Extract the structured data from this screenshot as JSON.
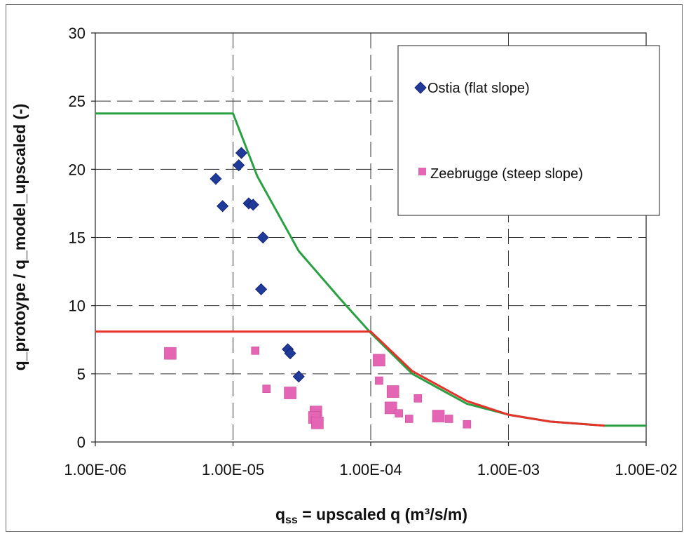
{
  "chart_data": {
    "type": "scatter",
    "xlabel_main": "q",
    "xlabel_sub": "ss",
    "xlabel_rest": " = upscaled q (m³/s/m)",
    "ylabel": "q_protoype / q_model_upscaled (-)",
    "x_scale": "log",
    "xlim": [
      1e-06,
      0.01
    ],
    "ylim": [
      0,
      30
    ],
    "x_tick_values": [
      1e-06,
      1e-05,
      0.0001,
      0.001,
      0.01
    ],
    "x_tick_labels": [
      "1.00E-06",
      "1.00E-05",
      "1.00E-04",
      "1.00E-03",
      "1.00E-02"
    ],
    "y_tick_values": [
      0,
      5,
      10,
      15,
      20,
      25,
      30
    ],
    "y_tick_labels": [
      "0",
      "5",
      "10",
      "15",
      "20",
      "25",
      "30"
    ],
    "grid": "dashed",
    "legend_position": "top-right",
    "series": [
      {
        "name": "Ostia (flat slope)",
        "marker": "diamond",
        "color": "#1f3a99",
        "points": [
          {
            "x": 7.5e-06,
            "y": 19.3
          },
          {
            "x": 8.4e-06,
            "y": 17.3
          },
          {
            "x": 1.1e-05,
            "y": 20.3
          },
          {
            "x": 1.15e-05,
            "y": 21.2
          },
          {
            "x": 1.3e-05,
            "y": 17.5
          },
          {
            "x": 1.4e-05,
            "y": 17.4
          },
          {
            "x": 1.65e-05,
            "y": 15.0
          },
          {
            "x": 1.6e-05,
            "y": 11.2
          },
          {
            "x": 2.5e-05,
            "y": 6.8
          },
          {
            "x": 2.6e-05,
            "y": 6.5
          },
          {
            "x": 3e-05,
            "y": 4.8
          }
        ]
      },
      {
        "name": "Zeebrugge (steep slope)",
        "marker": "square",
        "color": "#e565b5",
        "points": [
          {
            "x": 3.5e-06,
            "y": 6.5,
            "size": "large"
          },
          {
            "x": 1.45e-05,
            "y": 6.7,
            "size": "small"
          },
          {
            "x": 1.75e-05,
            "y": 3.9,
            "size": "small"
          },
          {
            "x": 2.6e-05,
            "y": 3.6,
            "size": "large"
          },
          {
            "x": 4e-05,
            "y": 2.2,
            "size": "large"
          },
          {
            "x": 3.9e-05,
            "y": 1.8,
            "size": "large"
          },
          {
            "x": 4.1e-05,
            "y": 1.4,
            "size": "large"
          },
          {
            "x": 0.000115,
            "y": 6.0,
            "size": "large"
          },
          {
            "x": 0.000115,
            "y": 4.5,
            "size": "small"
          },
          {
            "x": 0.000145,
            "y": 3.7,
            "size": "large"
          },
          {
            "x": 0.00014,
            "y": 2.5,
            "size": "large"
          },
          {
            "x": 0.00016,
            "y": 2.1,
            "size": "small"
          },
          {
            "x": 0.00019,
            "y": 1.7,
            "size": "small"
          },
          {
            "x": 0.00022,
            "y": 3.2,
            "size": "small"
          },
          {
            "x": 0.00031,
            "y": 1.9,
            "size": "large"
          },
          {
            "x": 0.00037,
            "y": 1.7,
            "size": "small"
          },
          {
            "x": 0.0005,
            "y": 1.3,
            "size": "small"
          }
        ]
      }
    ],
    "lines": [
      {
        "color": "#2aa043",
        "points": [
          {
            "x": 1e-06,
            "y": 24.1
          },
          {
            "x": 1e-05,
            "y": 24.1
          },
          {
            "x": 1.5e-05,
            "y": 19.5
          },
          {
            "x": 3e-05,
            "y": 14.0
          },
          {
            "x": 6e-05,
            "y": 10.5
          },
          {
            "x": 0.0001,
            "y": 8.0
          },
          {
            "x": 0.0002,
            "y": 5.0
          },
          {
            "x": 0.0005,
            "y": 2.8
          },
          {
            "x": 0.001,
            "y": 2.0
          },
          {
            "x": 0.002,
            "y": 1.5
          },
          {
            "x": 0.005,
            "y": 1.2
          },
          {
            "x": 0.01,
            "y": 1.2
          }
        ]
      },
      {
        "color": "#e3332a",
        "points": [
          {
            "x": 1e-06,
            "y": 8.1
          },
          {
            "x": 0.0001,
            "y": 8.1
          },
          {
            "x": 0.0002,
            "y": 5.2
          },
          {
            "x": 0.0005,
            "y": 3.0
          },
          {
            "x": 0.001,
            "y": 2.0
          },
          {
            "x": 0.002,
            "y": 1.5
          },
          {
            "x": 0.005,
            "y": 1.2
          }
        ]
      }
    ]
  }
}
